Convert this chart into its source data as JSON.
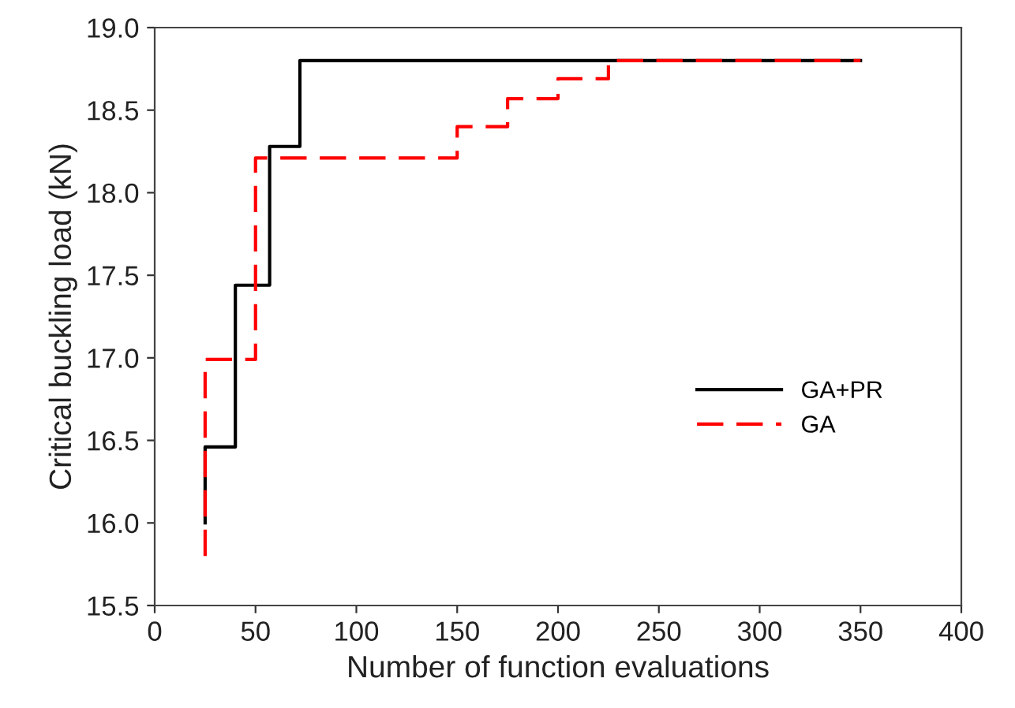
{
  "chart_data": {
    "type": "step",
    "xlabel": "Number of function evaluations",
    "ylabel": "Critical buckling load (kN)",
    "xlim": [
      0,
      400
    ],
    "xticks": [
      0,
      50,
      100,
      150,
      200,
      250,
      300,
      350,
      400
    ],
    "ylim": [
      15.5,
      19.0
    ],
    "yticks": [
      {
        "value": 15.5,
        "label": "15.5"
      },
      {
        "value": 16.0,
        "label": "16.0"
      },
      {
        "value": 16.5,
        "label": "16.5"
      },
      {
        "value": 17.0,
        "label": "17.0"
      },
      {
        "value": 17.5,
        "label": "17.5"
      },
      {
        "value": 18.0,
        "label": "18.0"
      },
      {
        "value": 18.5,
        "label": "18.5"
      },
      {
        "value": 19.0,
        "label": "19.0"
      }
    ],
    "grid": false,
    "legend": "right",
    "series": [
      {
        "name": "GA+PR",
        "color": "#000000",
        "line_style": "solid",
        "x": [
          25,
          25,
          40,
          57,
          72,
          350
        ],
        "values": [
          16.0,
          16.46,
          17.44,
          18.28,
          18.8,
          18.8
        ]
      },
      {
        "name": "GA",
        "color": "#ff0000",
        "line_style": "dashed",
        "x": [
          25,
          25,
          50,
          150,
          175,
          200,
          225,
          350
        ],
        "values": [
          15.8,
          16.99,
          18.21,
          18.4,
          18.57,
          18.69,
          18.8,
          18.8
        ]
      }
    ]
  }
}
